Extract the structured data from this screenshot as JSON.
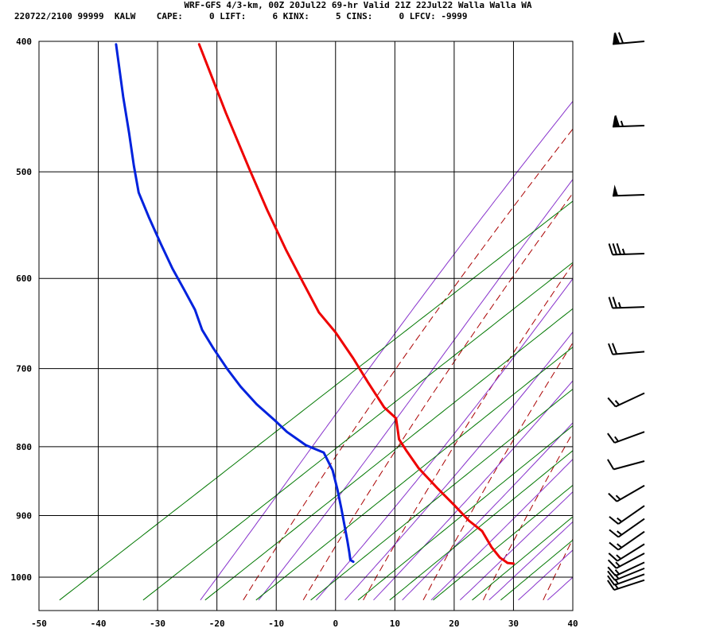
{
  "header": {
    "line1": "WRF-GFS 4/3-km, 00Z 20Jul22 69-hr Valid 21Z 22Jul22 Walla Walla WA",
    "line2": "220722/2100 99999  KALW    CAPE:     0 LIFT:     6 KINX:     5 CINS:     0 LFCV: -9999"
  },
  "colors": {
    "temperature": "#ee0000",
    "dewpoint": "#0022dd",
    "dry_adiabat": "#aa0000",
    "moist_adiabat": "#8833cc",
    "mixing_ratio": "#007700",
    "grid": "#000000",
    "barb": "#000000"
  },
  "chart_data": {
    "type": "line",
    "subtype": "skew-T log-P sounding",
    "xlim": [
      -50,
      40
    ],
    "ylim": [
      400,
      1040
    ],
    "y_scale": "log",
    "y_inverted": true,
    "grid": true,
    "x_ticks": [
      "-50",
      "-40",
      "-30",
      "-20",
      "-10",
      "0",
      "10",
      "20",
      "30",
      "40"
    ],
    "y_ticks": [
      "400",
      "500",
      "600",
      "700",
      "800",
      "900",
      "1000"
    ],
    "series": [
      {
        "key": "temperature",
        "points": [
          [
            -23,
            402
          ],
          [
            -18.5,
            452
          ],
          [
            -14.5,
            498
          ],
          [
            -11.5,
            534
          ],
          [
            -8.3,
            572
          ],
          [
            -5.5,
            604
          ],
          [
            -2.8,
            636
          ],
          [
            0,
            658
          ],
          [
            3,
            688
          ],
          [
            5.5,
            717
          ],
          [
            8.2,
            748
          ],
          [
            10.2,
            762
          ],
          [
            10.7,
            790
          ],
          [
            12,
            806
          ],
          [
            14,
            830
          ],
          [
            17.3,
            860
          ],
          [
            20,
            884
          ],
          [
            22.5,
            908
          ],
          [
            24.7,
            924
          ],
          [
            26.3,
            950
          ],
          [
            27.7,
            967
          ],
          [
            29,
            976
          ],
          [
            30,
            977
          ]
        ]
      },
      {
        "key": "dewpoint",
        "points": [
          [
            -37,
            402
          ],
          [
            -35.8,
            440
          ],
          [
            -34.8,
            468
          ],
          [
            -34,
            495
          ],
          [
            -33.2,
            518
          ],
          [
            -31.5,
            540
          ],
          [
            -29.5,
            565
          ],
          [
            -27.5,
            590
          ],
          [
            -25.5,
            612
          ],
          [
            -23.7,
            633
          ],
          [
            -22.5,
            655
          ],
          [
            -20.7,
            675
          ],
          [
            -18.3,
            700
          ],
          [
            -16,
            722
          ],
          [
            -13.3,
            744
          ],
          [
            -10.2,
            765
          ],
          [
            -8.2,
            780
          ],
          [
            -5,
            798
          ],
          [
            -2,
            808
          ],
          [
            -0.5,
            833
          ],
          [
            0.3,
            860
          ],
          [
            1,
            890
          ],
          [
            1.5,
            915
          ],
          [
            2,
            940
          ],
          [
            2.3,
            957
          ],
          [
            2.5,
            971
          ],
          [
            3,
            974
          ]
        ]
      }
    ],
    "dry_adiabats_theta_k": [
      260,
      270,
      280,
      290,
      300,
      310,
      320,
      330,
      340,
      350,
      360,
      370,
      380
    ],
    "moist_adiabats_thetae_c": [
      -20,
      -10,
      0,
      5,
      10,
      15,
      20,
      25,
      30,
      35,
      40,
      45
    ],
    "mixing_ratio_g_kg": [
      0.1,
      0.4,
      1,
      2,
      4,
      7,
      10,
      16,
      24,
      32
    ],
    "wind_barbs": [
      {
        "p": 400,
        "dir": 265,
        "spd": 70
      },
      {
        "p": 462,
        "dir": 268,
        "spd": 65
      },
      {
        "p": 520,
        "dir": 268,
        "spd": 50
      },
      {
        "p": 575,
        "dir": 268,
        "spd": 35
      },
      {
        "p": 630,
        "dir": 268,
        "spd": 25
      },
      {
        "p": 680,
        "dir": 265,
        "spd": 20
      },
      {
        "p": 730,
        "dir": 245,
        "spd": 15
      },
      {
        "p": 780,
        "dir": 250,
        "spd": 15
      },
      {
        "p": 820,
        "dir": 255,
        "spd": 10
      },
      {
        "p": 855,
        "dir": 240,
        "spd": 15
      },
      {
        "p": 885,
        "dir": 235,
        "spd": 15
      },
      {
        "p": 905,
        "dir": 235,
        "spd": 15
      },
      {
        "p": 925,
        "dir": 235,
        "spd": 15
      },
      {
        "p": 945,
        "dir": 238,
        "spd": 15
      },
      {
        "p": 960,
        "dir": 242,
        "spd": 15
      },
      {
        "p": 975,
        "dir": 245,
        "spd": 15
      },
      {
        "p": 985,
        "dir": 248,
        "spd": 15
      },
      {
        "p": 995,
        "dir": 250,
        "spd": 15
      },
      {
        "p": 1005,
        "dir": 252,
        "spd": 15
      }
    ]
  }
}
